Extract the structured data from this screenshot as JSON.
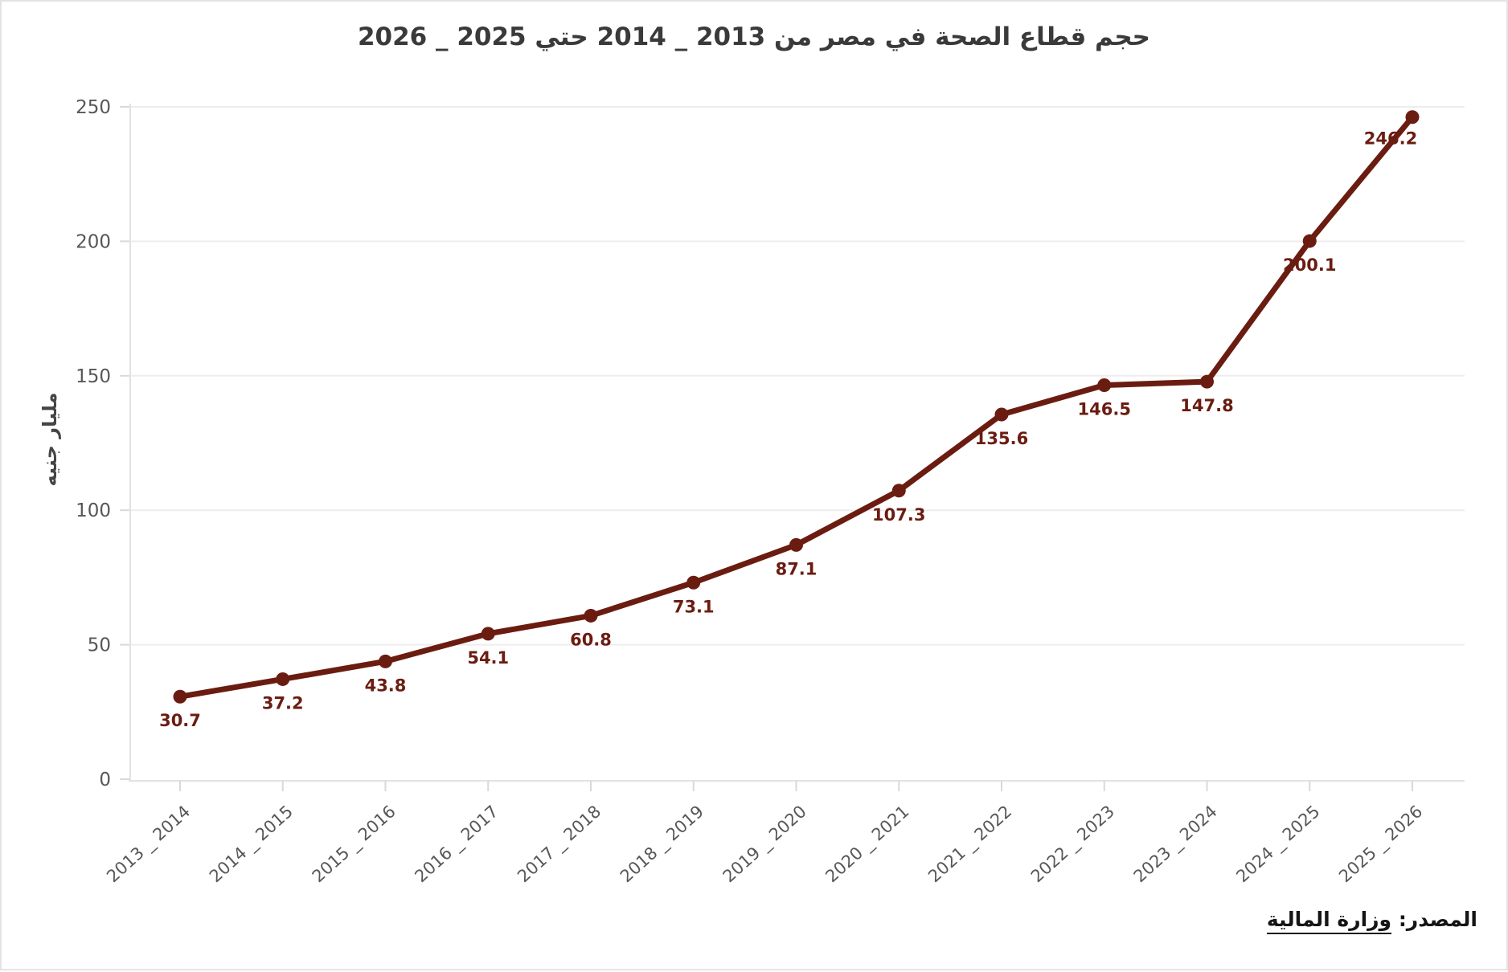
{
  "title": "حجم قطاع الصحة في مصر من 2013 _ 2014 حتي 2025 _ 2026",
  "source": {
    "label": "المصدر:",
    "name": "وزارة المالية"
  },
  "chart_data": {
    "type": "line",
    "title": "حجم قطاع الصحة في مصر من 2013 _ 2014 حتي 2025 _ 2026",
    "categories": [
      "2013 _ 2014",
      "2014 _ 2015",
      "2015 _ 2016",
      "2016 _ 2017",
      "2017 _ 2018",
      "2018 _ 2019",
      "2019 _ 2020",
      "2020 _ 2021",
      "2021 _ 2022",
      "2022 _ 2023",
      "2023 _ 2024",
      "2024 _ 2025",
      "2025 _ 2026"
    ],
    "values": [
      30.7,
      37.2,
      43.8,
      54.1,
      60.8,
      73.1,
      87.1,
      107.3,
      135.6,
      146.5,
      147.8,
      200.1,
      246.2
    ],
    "xlabel": "",
    "ylabel": "مليار جنيه",
    "ylim": [
      0,
      250
    ],
    "yticks": [
      0,
      50,
      100,
      150,
      200,
      250
    ],
    "grid": true,
    "legend": "none",
    "colors": {
      "line": "#6b1c11",
      "marker": "#6b1c11",
      "data_label": "#6b1c11",
      "grid": "#ededed",
      "axis_line": "#e2e2e2",
      "tick_mark": "#d9d9d9",
      "tick_text": "#575757"
    }
  }
}
